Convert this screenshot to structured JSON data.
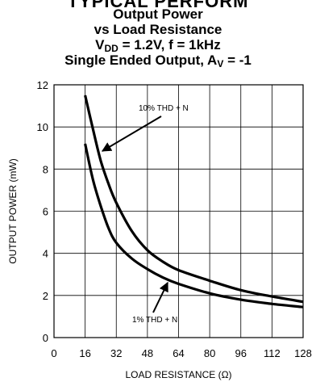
{
  "header": {
    "banner_line": "TYPICAL PERFORM",
    "title_line1": "Output Power",
    "title_line2": "vs Load Resistance",
    "cond_pre": "V",
    "cond_sub": "DD",
    "cond_post": " = 1.2V, f = 1kHz",
    "mode_pre": "Single Ended Output, A",
    "mode_sub": "V",
    "mode_post": " = -1"
  },
  "chart_data": {
    "type": "line",
    "xlabel": "LOAD RESISTANCE (Ω)",
    "ylabel": "OUTPUT POWER (mW)",
    "xlim": [
      0,
      128
    ],
    "ylim": [
      0,
      12
    ],
    "x_ticks": [
      0,
      16,
      32,
      48,
      64,
      80,
      96,
      112,
      128
    ],
    "y_ticks": [
      0,
      2,
      4,
      6,
      8,
      10,
      12
    ],
    "grid": true,
    "series": [
      {
        "name": "10% THD + N",
        "x": [
          16,
          20,
          24,
          28,
          32,
          40,
          48,
          56,
          64,
          80,
          96,
          112,
          128
        ],
        "y": [
          11.5,
          9.9,
          8.4,
          7.3,
          6.4,
          5.05,
          4.15,
          3.6,
          3.2,
          2.7,
          2.25,
          1.95,
          1.7
        ]
      },
      {
        "name": "1% THD + N",
        "x": [
          16,
          20,
          24,
          28,
          32,
          40,
          48,
          56,
          64,
          80,
          96,
          112,
          128
        ],
        "y": [
          9.2,
          7.5,
          6.25,
          5.2,
          4.5,
          3.75,
          3.25,
          2.85,
          2.55,
          2.1,
          1.8,
          1.6,
          1.45
        ]
      }
    ],
    "annotations": [
      {
        "text": "10% THD + N",
        "series": "10% THD + N"
      },
      {
        "text": "1% THD + N",
        "series": "1% THD + N"
      }
    ]
  }
}
